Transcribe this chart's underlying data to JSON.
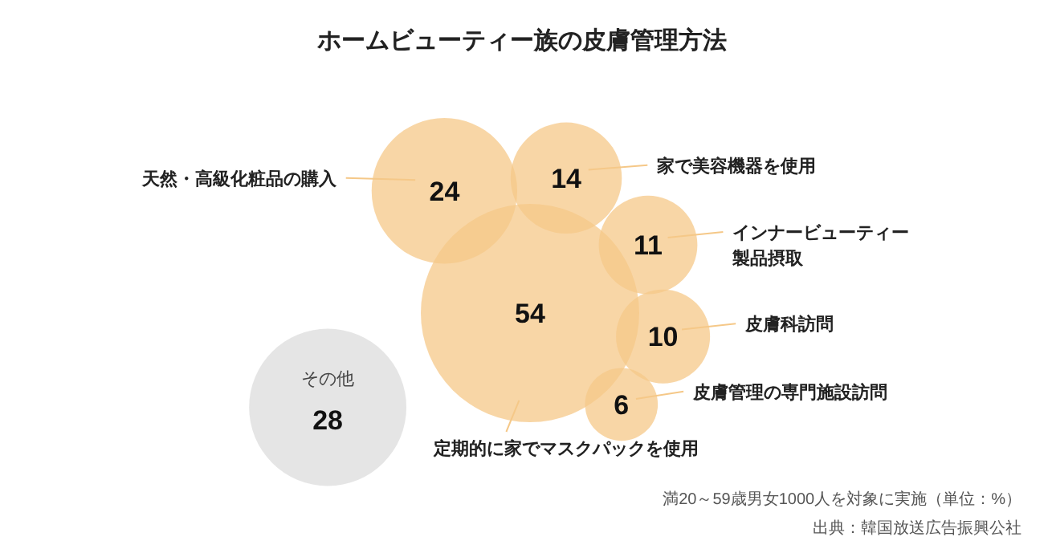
{
  "chart_data": {
    "type": "other",
    "title": "ホームビューティー族の皮膚管理方法",
    "categories": [
      "定期的に家でマスクパックを使用",
      "天然・高級化粧品の購入",
      "家で美容機器を使用",
      "インナービューティー製品摂取",
      "皮膚科訪問",
      "皮膚管理の専門施設訪問",
      "その他"
    ],
    "values": [
      54,
      24,
      14,
      11,
      10,
      6,
      28
    ],
    "data_labels": true,
    "colors": [
      "#f5c888",
      "#f5c888",
      "#f5c888",
      "#f5c888",
      "#f5c888",
      "#f5c888",
      "#dcdcdc"
    ],
    "annotations": [
      "満20～59歳男女1000人を対象に実施（単位：%）",
      "出典：韓国放送広告振興公社"
    ]
  }
}
